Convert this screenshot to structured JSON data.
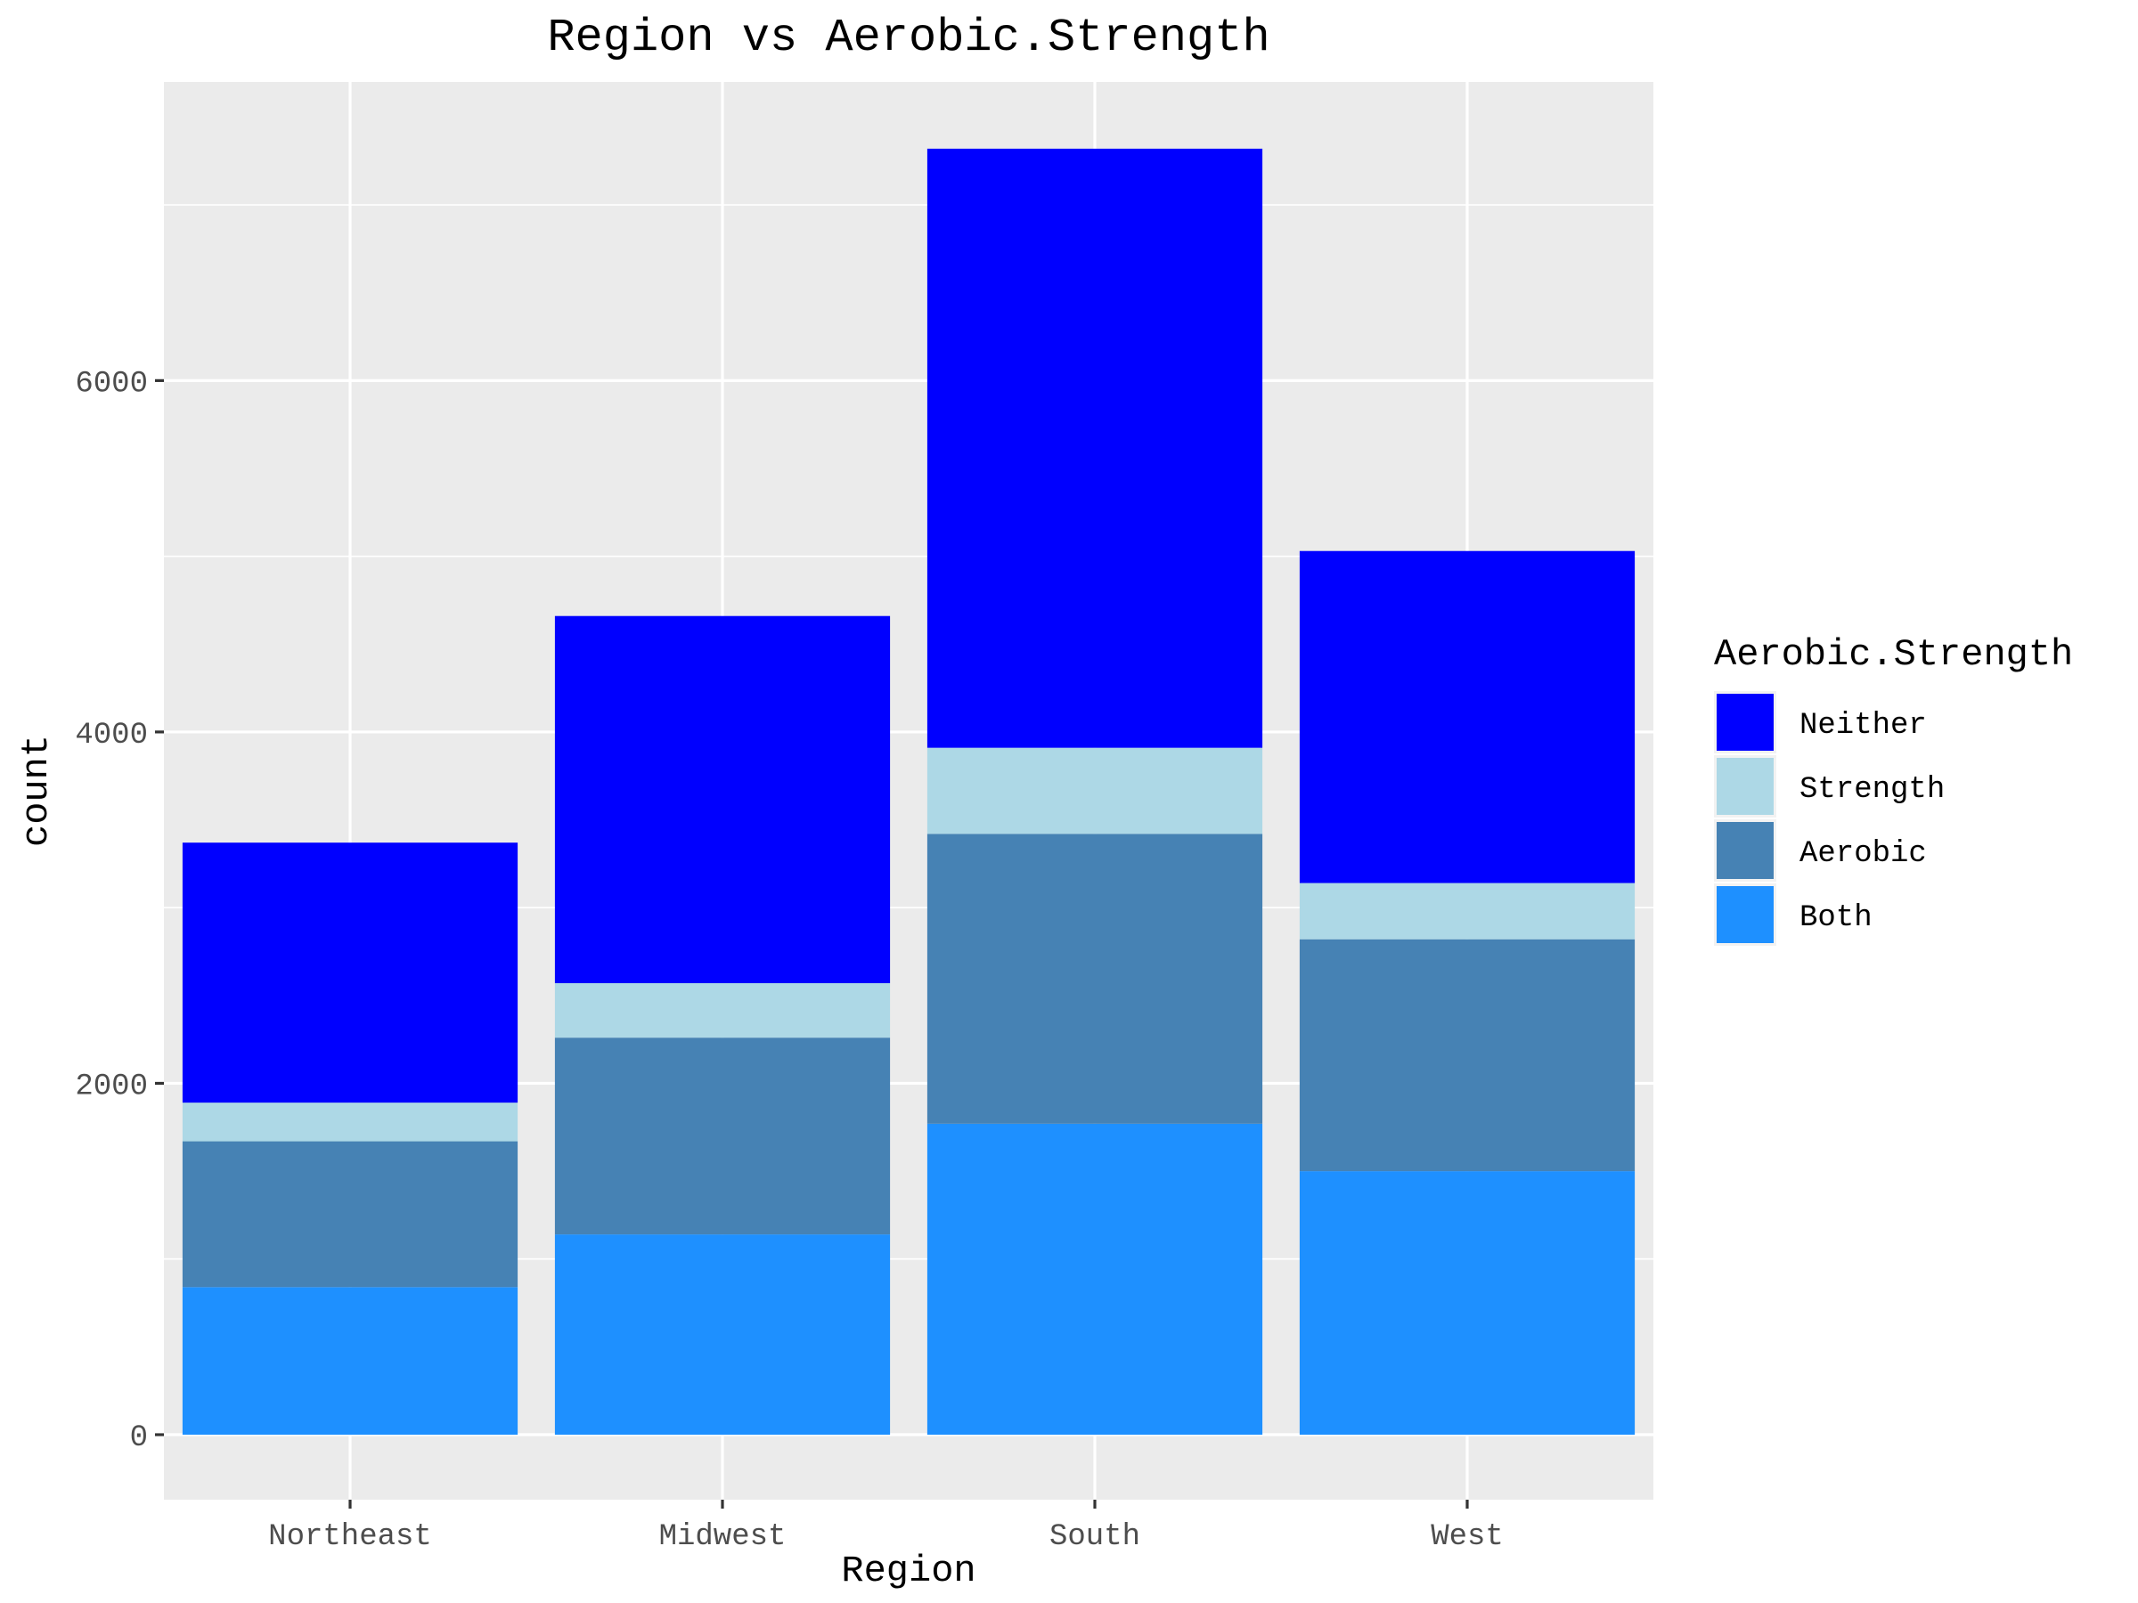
{
  "chart_data": {
    "type": "bar",
    "stacked": true,
    "title": "Region vs Aerobic.Strength",
    "xlabel": "Region",
    "ylabel": "count",
    "categories": [
      "Northeast",
      "Midwest",
      "South",
      "West"
    ],
    "y_ticks": [
      0,
      2000,
      4000,
      6000
    ],
    "ylim": [
      -370,
      7700
    ],
    "grid": true,
    "legend": {
      "title": "Aerobic.Strength",
      "placement": "right"
    },
    "series": [
      {
        "name": "Both",
        "color": "#1E90FF",
        "values": [
          840,
          1140,
          1770,
          1500
        ]
      },
      {
        "name": "Aerobic",
        "color": "#4682B4",
        "values": [
          830,
          1120,
          1650,
          1320
        ]
      },
      {
        "name": "Strength",
        "color": "#ADD8E6",
        "values": [
          220,
          310,
          490,
          320
        ]
      },
      {
        "name": "Neither",
        "color": "#0000FF",
        "values": [
          1480,
          2090,
          3410,
          1890
        ]
      }
    ],
    "legend_order": [
      "Neither",
      "Strength",
      "Aerobic",
      "Both"
    ]
  }
}
